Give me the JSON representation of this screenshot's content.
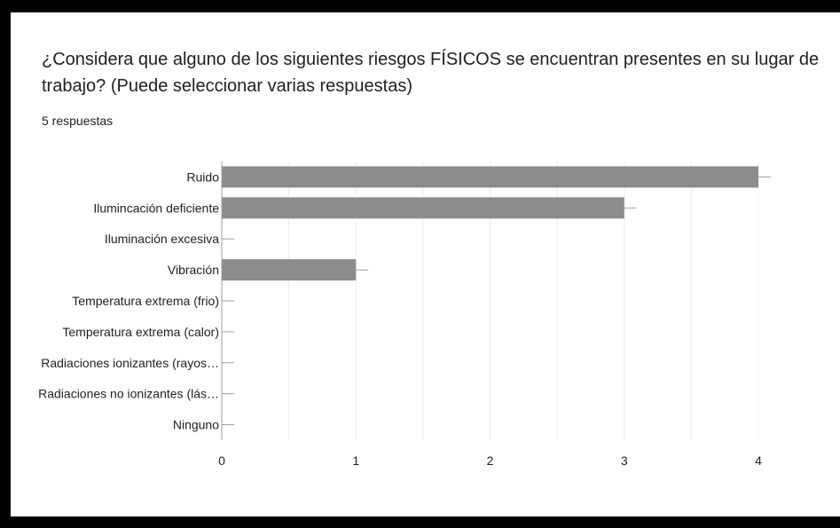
{
  "colors": {
    "frame": "#000000",
    "card": "#ffffff",
    "bar": "#8c8c8c",
    "text": "#202124",
    "grid": "#ececec",
    "axis": "#9e9e9e"
  },
  "question": {
    "title": "¿Considera que alguno de los siguientes riesgos FÍSICOS se encuentran presentes en su lugar de trabajo? (Puede seleccionar varias respuestas)",
    "responses": "5 respuestas"
  },
  "chart_data": {
    "type": "bar",
    "orientation": "horizontal",
    "categories": [
      "Ruido",
      "Ilumincación deficiente",
      "Iluminación excesiva",
      "Vibración",
      "Temperatura extrema (frio)",
      "Temperatura extrema (calor)",
      "Radiaciones ionizantes (rayos…",
      "Radiaciones no ionizantes (lás…",
      "Ninguno"
    ],
    "values": [
      4,
      3,
      0,
      1,
      0,
      0,
      0,
      0,
      0
    ],
    "xticks": [
      "0",
      "1",
      "2",
      "3",
      "4"
    ],
    "xlim": [
      0,
      4
    ],
    "grid": true
  }
}
